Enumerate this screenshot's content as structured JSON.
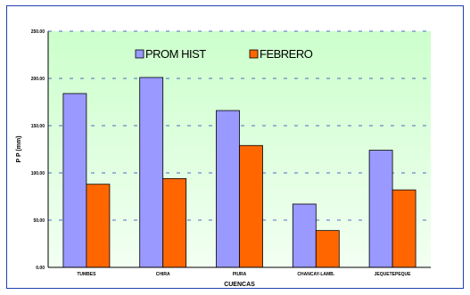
{
  "colors": {
    "plot_bg_top": "#ccffcc",
    "plot_bg_bottom": "#f2fff2",
    "series_1": "#9999ff",
    "series_2": "#ff6600",
    "gridline": "#1a3fb5"
  },
  "chart_data": {
    "type": "bar",
    "title": "",
    "xlabel": "CUENCAS",
    "ylabel": "P P (mm)",
    "ylim": [
      0,
      250
    ],
    "yticks": [
      0,
      50,
      100,
      150,
      200,
      250
    ],
    "ytick_labels": [
      "0.00",
      "50.00",
      "100.00",
      "150.00",
      "200.00",
      "250.00"
    ],
    "grid": true,
    "legend_position": "top",
    "categories": [
      "TUMBES",
      "CHIRA",
      "PIURA",
      "CHANCAY-LAMB.",
      "JEQUETEPEQUE"
    ],
    "series": [
      {
        "name": "PROM HIST",
        "values": [
          184,
          201,
          166,
          67,
          124
        ]
      },
      {
        "name": "FEBRERO",
        "values": [
          88,
          94,
          129,
          39,
          82
        ]
      }
    ]
  }
}
